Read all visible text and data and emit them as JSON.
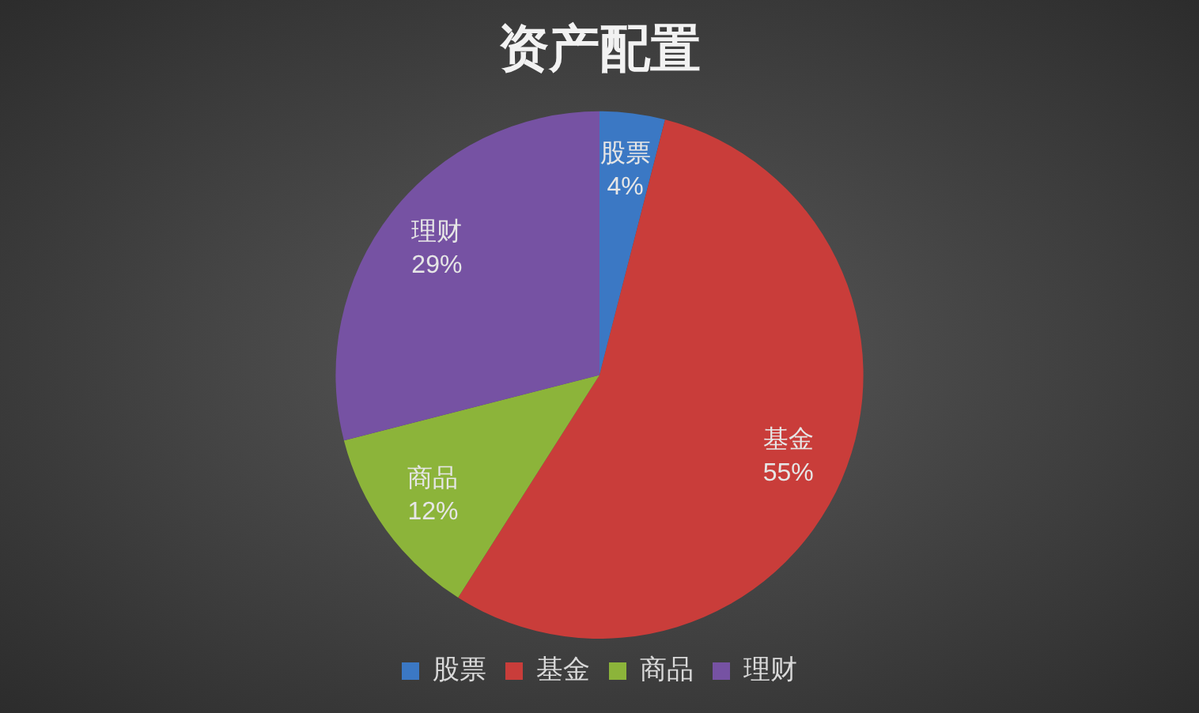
{
  "chart_data": {
    "type": "pie",
    "title": "资产配置",
    "categories": [
      "股票",
      "基金",
      "商品",
      "理财"
    ],
    "values": [
      4,
      55,
      12,
      29
    ],
    "colors": [
      "#3b78c4",
      "#c93d3a",
      "#8cb43a",
      "#7652a3"
    ],
    "value_labels": [
      "4%",
      "55%",
      "12%",
      "29%"
    ],
    "legend": "bottom"
  }
}
